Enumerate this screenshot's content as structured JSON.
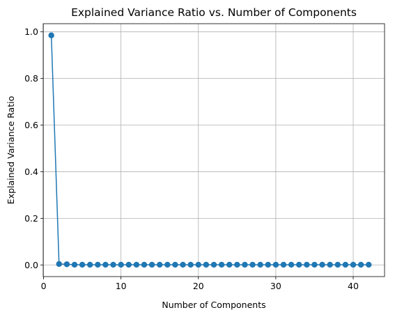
{
  "chart_data": {
    "type": "line",
    "title": "Explained Variance Ratio vs. Number of Components",
    "xlabel": "Number of Components",
    "ylabel": "Explained Variance Ratio",
    "xlim": [
      -0.05,
      44.05
    ],
    "ylim": [
      -0.05,
      1.035
    ],
    "x_ticks": [
      0,
      10,
      20,
      30,
      40
    ],
    "x_tick_labels": [
      "0",
      "10",
      "20",
      "30",
      "40"
    ],
    "y_ticks": [
      0.0,
      0.2,
      0.4,
      0.6,
      0.8,
      1.0
    ],
    "y_tick_labels": [
      "0.0",
      "0.2",
      "0.4",
      "0.6",
      "0.8",
      "1.0"
    ],
    "grid": true,
    "marker": "circle",
    "color": "#1f77b4",
    "series": [
      {
        "x": [
          1,
          2,
          3,
          4,
          5,
          6,
          7,
          8,
          9,
          10,
          11,
          12,
          13,
          14,
          15,
          16,
          17,
          18,
          19,
          20,
          21,
          22,
          23,
          24,
          25,
          26,
          27,
          28,
          29,
          30,
          31,
          32,
          33,
          34,
          35,
          36,
          37,
          38,
          39,
          40,
          41,
          42
        ],
        "values": [
          0.985,
          0.004,
          0.003,
          0.001,
          0.001,
          0.001,
          0.001,
          0.001,
          0.001,
          0.001,
          0.001,
          0.001,
          0.001,
          0.001,
          0.001,
          0.001,
          0.001,
          0.001,
          0.001,
          0.001,
          0.001,
          0.001,
          0.001,
          0.001,
          0.001,
          0.001,
          0.001,
          0.001,
          0.001,
          0.001,
          0.001,
          0.001,
          0.001,
          0.001,
          0.001,
          0.001,
          0.001,
          0.001,
          0.001,
          0.001,
          0.001,
          0.001
        ]
      }
    ]
  }
}
